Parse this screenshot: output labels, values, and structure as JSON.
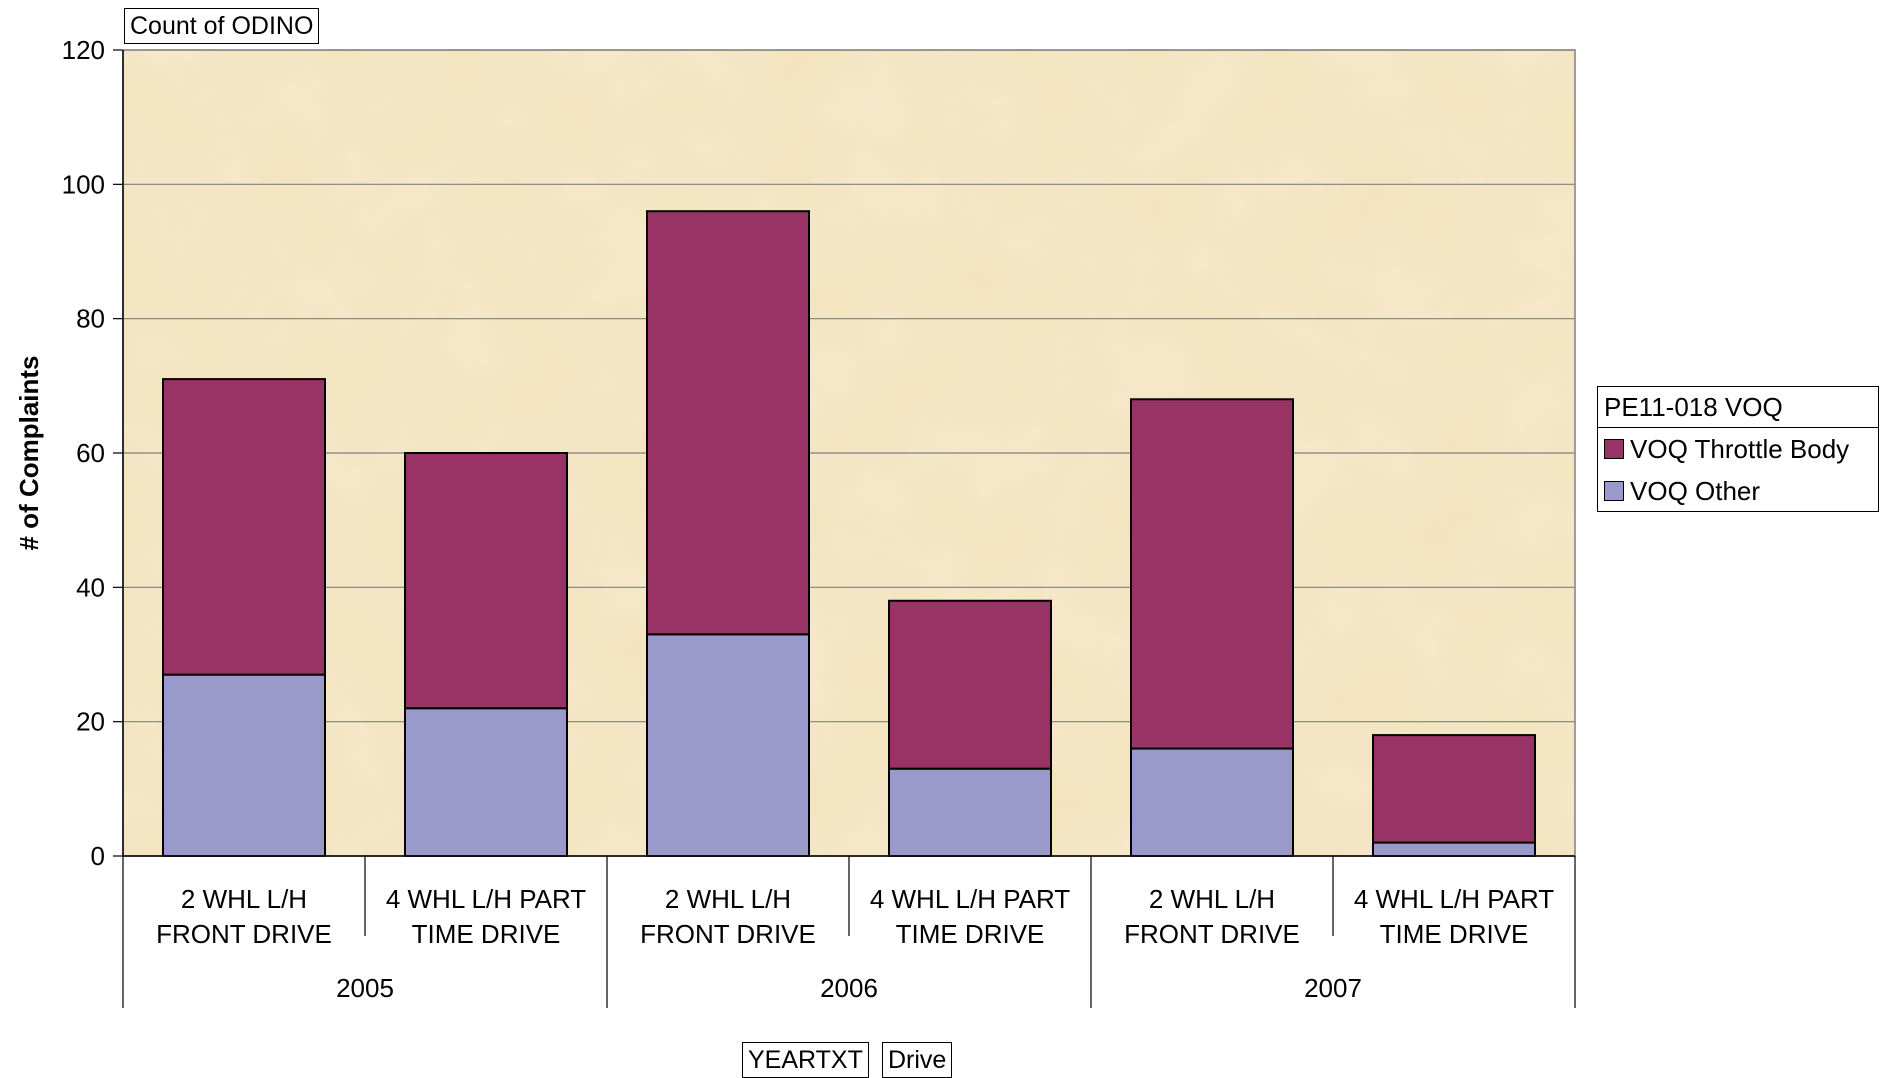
{
  "colors": {
    "throttle": "#993366",
    "other": "#9999cc",
    "plot_bg": "#efdcb0",
    "grid": "#808080"
  },
  "field_buttons": {
    "data_field": "Count of ODINO",
    "row_field_1": "YEARTXT",
    "row_field_2": "Drive"
  },
  "legend": {
    "title": "PE11-018 VOQ",
    "items": [
      {
        "label": "VOQ Throttle Body",
        "color": "#993366"
      },
      {
        "label": "VOQ Other",
        "color": "#9999cc"
      }
    ]
  },
  "chart_data": {
    "type": "bar",
    "stacked": true,
    "ylabel": "# of Complaints",
    "ylim": [
      0,
      120
    ],
    "yticks": [
      0,
      20,
      40,
      60,
      80,
      100,
      120
    ],
    "grid": true,
    "legend_position": "right",
    "groups": [
      {
        "label": "2005",
        "categories": [
          "2 WHL L/H FRONT DRIVE",
          "4 WHL L/H PART TIME DRIVE"
        ]
      },
      {
        "label": "2006",
        "categories": [
          "2 WHL L/H FRONT DRIVE",
          "4 WHL L/H PART TIME DRIVE"
        ]
      },
      {
        "label": "2007",
        "categories": [
          "2 WHL L/H FRONT DRIVE",
          "4 WHL L/H PART TIME DRIVE"
        ]
      }
    ],
    "category_labels": [
      [
        "2 WHL L/H",
        "FRONT DRIVE"
      ],
      [
        "4 WHL L/H PART",
        "TIME DRIVE"
      ],
      [
        "2 WHL L/H",
        "FRONT DRIVE"
      ],
      [
        "4 WHL L/H PART",
        "TIME DRIVE"
      ],
      [
        "2 WHL L/H",
        "FRONT DRIVE"
      ],
      [
        "4 WHL L/H PART",
        "TIME DRIVE"
      ]
    ],
    "series": [
      {
        "name": "VOQ Other",
        "values": [
          27,
          22,
          33,
          13,
          16,
          2
        ]
      },
      {
        "name": "VOQ Throttle Body",
        "values": [
          44,
          38,
          63,
          25,
          52,
          16
        ]
      }
    ]
  }
}
